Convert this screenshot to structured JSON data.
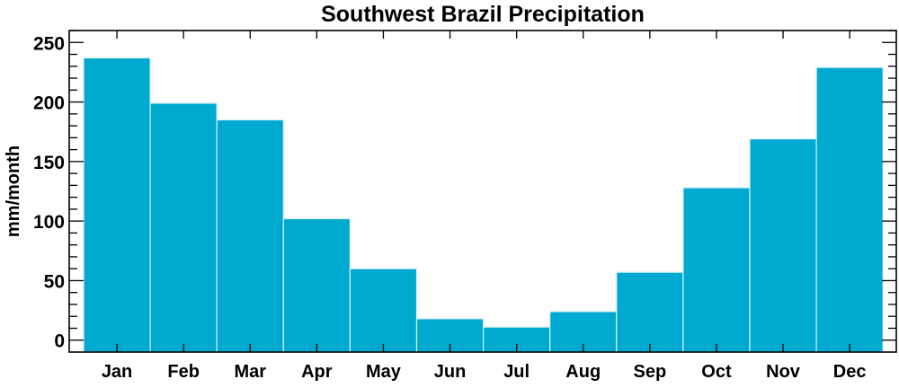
{
  "chart_data": {
    "type": "bar",
    "title": "Southwest Brazil Precipitation",
    "xlabel": "",
    "ylabel": "mm/month",
    "categories": [
      "Jan",
      "Feb",
      "Mar",
      "Apr",
      "May",
      "Jun",
      "Jul",
      "Aug",
      "Sep",
      "Oct",
      "Nov",
      "Dec"
    ],
    "values": [
      237,
      199,
      185,
      102,
      60,
      18,
      11,
      24,
      57,
      128,
      169,
      229
    ],
    "ylim": [
      -10,
      260
    ],
    "yticks": [
      0,
      50,
      100,
      150,
      200,
      250
    ],
    "yminor_step": 10,
    "grid": false,
    "legend": "none",
    "bar_color": "#00a9d0",
    "bar_edge_color": "#d8f2f8"
  }
}
